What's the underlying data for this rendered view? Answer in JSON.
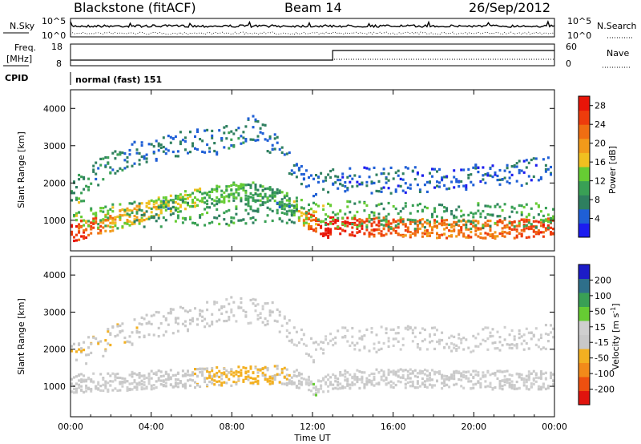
{
  "header": {
    "site": "Blackstone (fitACF)",
    "beam": "Beam 14",
    "date": "26/Sep/2012"
  },
  "noise_panel": {
    "left_label": "N.Sky",
    "right_label": "N.Search",
    "ticks": [
      "10^5",
      "10^0"
    ]
  },
  "freq_panel": {
    "left_label_1": "Freq.",
    "left_label_2": "[MHz]",
    "left_ticks": [
      "18",
      "8"
    ],
    "right_label": "Nave",
    "right_ticks": [
      "60",
      "0"
    ],
    "cpid_label": "CPID",
    "mode_text": "normal (fast) 151"
  },
  "x_axis": {
    "label": "Time UT",
    "ticks": [
      "00:00",
      "04:00",
      "08:00",
      "12:00",
      "16:00",
      "20:00",
      "00:00"
    ]
  },
  "colors": {
    "power_scale": [
      "#1c1cf0",
      "#1f5fd6",
      "#2e7f5f",
      "#39a055",
      "#66cc33",
      "#f0c020",
      "#f29a1a",
      "#f06e12",
      "#ee3c0c",
      "#e81508"
    ],
    "velocity_scale": [
      "#e0140e",
      "#ee5010",
      "#f28a1a",
      "#f3b021",
      "#c8c8c8",
      "#cfcfcf",
      "#66cc33",
      "#39a055",
      "#2e6f8a",
      "#1c1cc8"
    ]
  },
  "chart_data": [
    {
      "type": "heatmap",
      "panel": "power",
      "xlabel": "Time UT",
      "ylabel": "Slant Range [km]",
      "x_range_hours": [
        0,
        24
      ],
      "ylim": [
        180,
        4500
      ],
      "y_ticks": [
        1000,
        2000,
        3000,
        4000
      ],
      "colorbar": {
        "label": "Power [dB]",
        "range": [
          0,
          30
        ],
        "ticks": [
          4,
          8,
          12,
          16,
          20,
          24,
          28
        ]
      },
      "bands": [
        {
          "name": "main",
          "t": [
            0,
            1,
            2,
            3,
            4,
            5,
            6,
            7,
            8,
            9,
            10,
            10.8,
            11.6,
            12.5,
            13,
            14,
            16,
            18,
            20,
            22,
            24
          ],
          "y": [
            700,
            850,
            1000,
            1150,
            1350,
            1500,
            1600,
            1700,
            1800,
            1800,
            1700,
            1500,
            1100,
            700,
            950,
            850,
            850,
            800,
            800,
            800,
            850
          ],
          "power": [
            26,
            24,
            20,
            18,
            16,
            14,
            14,
            12,
            12,
            10,
            10,
            12,
            20,
            30,
            28,
            26,
            24,
            22,
            22,
            24,
            26
          ]
        },
        {
          "name": "half-hop",
          "t": [
            0,
            2,
            4,
            6,
            8,
            10,
            11,
            12,
            13,
            16,
            20,
            24
          ],
          "y": [
            1250,
            1150,
            1200,
            1250,
            1250,
            1300,
            1300,
            1250,
            1200,
            1150,
            1150,
            1150
          ],
          "power": [
            12,
            14,
            8,
            10,
            10,
            8,
            8,
            14,
            12,
            10,
            10,
            12
          ]
        },
        {
          "name": "upper",
          "t": [
            0,
            1,
            2,
            3,
            4,
            5,
            6,
            7,
            8,
            9,
            10,
            11,
            12,
            13,
            16,
            20,
            24
          ],
          "y": [
            1800,
            2200,
            2500,
            2800,
            2900,
            3000,
            3200,
            3100,
            3300,
            3500,
            3100,
            2400,
            1900,
            2100,
            2100,
            2200,
            2400
          ],
          "power": [
            10,
            8,
            8,
            6,
            6,
            6,
            6,
            6,
            8,
            6,
            6,
            6,
            6,
            6,
            5,
            5,
            5
          ]
        }
      ]
    },
    {
      "type": "heatmap",
      "panel": "velocity",
      "xlabel": "Time UT",
      "ylabel": "Slant Range [km]",
      "x_range_hours": [
        0,
        24
      ],
      "ylim": [
        180,
        4500
      ],
      "y_ticks": [
        1000,
        2000,
        3000,
        4000
      ],
      "colorbar": {
        "label": "Velocity [m s^-1]",
        "range": [
          -250,
          250
        ],
        "ticks": [
          200,
          100,
          50,
          15,
          -15,
          -50,
          -100,
          -200
        ]
      },
      "bands": [
        {
          "name": "main",
          "t": [
            0,
            2,
            4,
            6,
            7,
            8,
            9,
            10,
            11,
            12,
            13,
            16,
            20,
            24
          ],
          "y": [
            1100,
            1150,
            1200,
            1250,
            1300,
            1300,
            1350,
            1350,
            1300,
            1000,
            1200,
            1250,
            1200,
            1200
          ],
          "velocity": [
            0,
            0,
            0,
            -40,
            -60,
            -60,
            -60,
            -50,
            -30,
            40,
            0,
            0,
            0,
            0
          ]
        },
        {
          "name": "upper",
          "t": [
            0,
            2,
            4,
            6,
            8,
            10,
            12,
            13,
            16,
            20,
            24
          ],
          "y": [
            1800,
            2300,
            2700,
            2900,
            3100,
            3000,
            2000,
            2300,
            2300,
            2300,
            2400
          ],
          "velocity": [
            -40,
            -40,
            -30,
            -20,
            -10,
            -10,
            0,
            0,
            0,
            0,
            0
          ]
        }
      ]
    }
  ]
}
